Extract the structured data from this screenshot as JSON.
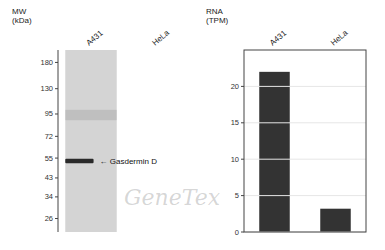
{
  "chart_data": [
    {
      "type": "blot",
      "categories": [
        "A431",
        "HeLa"
      ],
      "values": [
        53,
        null
      ],
      "smear": [
        88,
        100
      ],
      "color": "#2a2a2a",
      "log": "y",
      "ylim": [
        22,
        210
      ],
      "yticks": [
        180,
        130,
        95,
        72,
        55,
        43,
        34,
        26
      ],
      "ylabel": "MW\n(kDa)",
      "annotation": "← Gasdermin D",
      "watermark": "GeneTex"
    },
    {
      "type": "bar",
      "categories": [
        "A431",
        "HeLa"
      ],
      "values": [
        22.0,
        3.2
      ],
      "color": "#333333",
      "ylim": [
        0,
        25
      ],
      "yticks": [
        0,
        5,
        10,
        15,
        20
      ],
      "ylabel": "RNA\n(TPM)"
    }
  ]
}
